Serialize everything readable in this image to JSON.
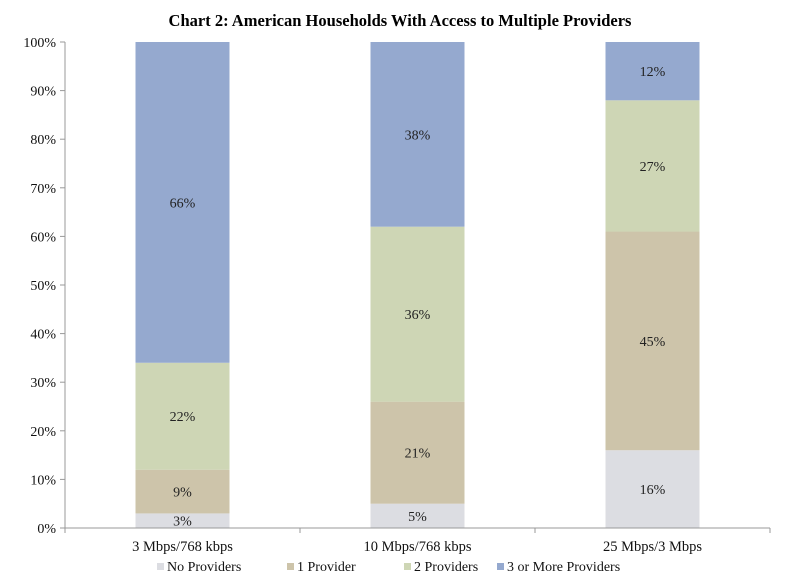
{
  "chart_data": {
    "type": "bar",
    "stacked": true,
    "title": "Chart 2:  American Households With Access to Multiple Providers",
    "xlabel": "",
    "ylabel": "",
    "ylim": [
      0,
      100
    ],
    "yticks": [
      "0%",
      "10%",
      "20%",
      "30%",
      "40%",
      "50%",
      "60%",
      "70%",
      "80%",
      "90%",
      "100%"
    ],
    "categories": [
      "3 Mbps/768 kbps",
      "10 Mbps/768 kbps",
      "25 Mbps/3 Mbps"
    ],
    "series": [
      {
        "name": "No Providers",
        "color": "#dcdde2",
        "values": [
          3,
          5,
          16
        ],
        "labels": [
          "3%",
          "5%",
          "16%"
        ]
      },
      {
        "name": "1 Provider",
        "color": "#cdc4aa",
        "values": [
          9,
          21,
          45
        ],
        "labels": [
          "9%",
          "21%",
          "45%"
        ]
      },
      {
        "name": "2 Providers",
        "color": "#ced6b5",
        "values": [
          22,
          36,
          27
        ],
        "labels": [
          "22%",
          "36%",
          "27%"
        ]
      },
      {
        "name": "3 or More Providers",
        "color": "#95a9cf",
        "values": [
          66,
          38,
          12
        ],
        "labels": [
          "66%",
          "38%",
          "12%"
        ]
      }
    ],
    "legend": "bottom",
    "grid": false
  }
}
